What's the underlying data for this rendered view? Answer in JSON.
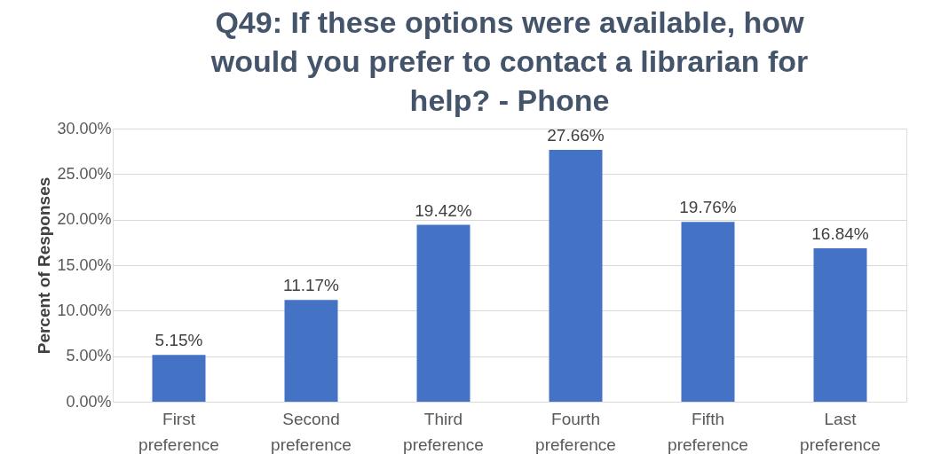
{
  "chart_data": {
    "type": "bar",
    "title": "Q49: If these options were available, how would you prefer to contact a librarian for help? - Phone",
    "ylabel": "Percent of Responses",
    "categories": [
      "First preference",
      "Second preference",
      "Third preference",
      "Fourth preference",
      "Fifth preference",
      "Last preference"
    ],
    "values": [
      5.15,
      11.17,
      19.42,
      27.66,
      19.76,
      16.84
    ],
    "value_labels": [
      "5.15%",
      "11.17%",
      "19.42%",
      "27.66%",
      "19.76%",
      "16.84%"
    ],
    "color": "#4472c4",
    "ylim": [
      0,
      30
    ],
    "yticks": [
      {
        "value": 0,
        "label": "0.00%"
      },
      {
        "value": 5,
        "label": "5.00%"
      },
      {
        "value": 10,
        "label": "10.00%"
      },
      {
        "value": 15,
        "label": "15.00%"
      },
      {
        "value": 20,
        "label": "20.00%"
      },
      {
        "value": 25,
        "label": "25.00%"
      },
      {
        "value": 30,
        "label": "30.00%"
      }
    ],
    "grid": "y"
  }
}
